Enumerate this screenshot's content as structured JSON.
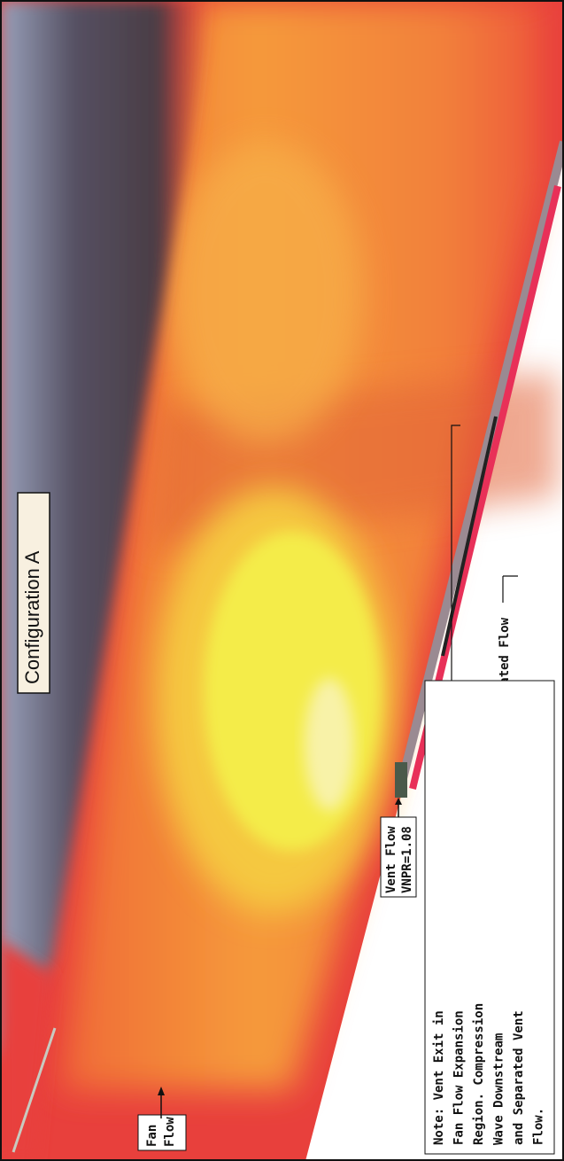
{
  "title": "Configuration A",
  "fan_flow": [
    "Fan",
    "Flow"
  ],
  "vent_flow": [
    "Vent Flow",
    "VNPR=1.08"
  ],
  "separated_flow": "Separated Flow",
  "note": [
    "Note: Vent Exit in",
    "Fan Flow Expansion",
    "Region. Compression",
    "Wave Downstream",
    "and Separated Vent",
    "Flow."
  ]
}
